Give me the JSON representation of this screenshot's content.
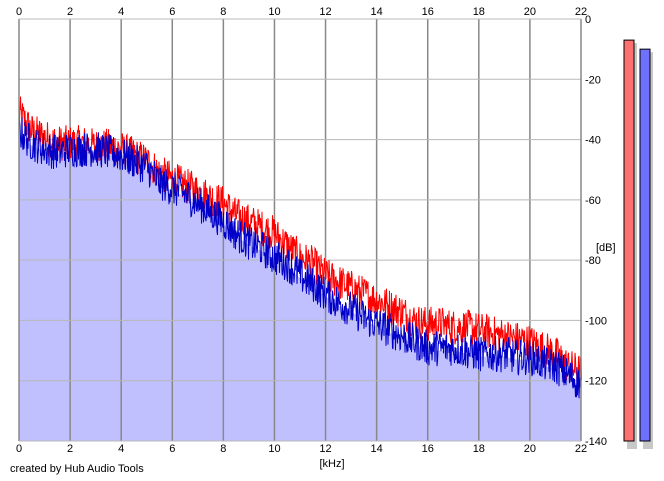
{
  "credit": "created by Hub Audio Tools",
  "chart_data": {
    "type": "area",
    "title": "",
    "xlabel": "[kHz]",
    "ylabel": "[dB]",
    "xlim": [
      0,
      22
    ],
    "ylim": [
      -140,
      0
    ],
    "xticks": [
      0,
      2,
      4,
      6,
      8,
      10,
      12,
      14,
      16,
      18,
      20,
      22
    ],
    "yticks": [
      0,
      -20,
      -40,
      -60,
      -80,
      -100,
      -120,
      -140
    ],
    "grid": true,
    "series": [
      {
        "channel": "left",
        "color": "#ff0000",
        "x": [
          0,
          0.5,
          1,
          1.5,
          2,
          2.5,
          3,
          3.5,
          4,
          4.5,
          5,
          5.5,
          6,
          6.5,
          7,
          7.5,
          8,
          8.5,
          9,
          9.5,
          10,
          10.5,
          11,
          11.5,
          12,
          12.5,
          13,
          13.5,
          14,
          14.5,
          15,
          15.5,
          16,
          16.5,
          17,
          17.5,
          18,
          18.5,
          19,
          19.5,
          20,
          20.5,
          21,
          21.5,
          22
        ],
        "y": [
          -30,
          -36,
          -38,
          -40,
          -40,
          -40,
          -41,
          -41,
          -42,
          -44,
          -46,
          -50,
          -52,
          -54,
          -56,
          -58,
          -60,
          -64,
          -66,
          -68,
          -70,
          -74,
          -78,
          -80,
          -84,
          -86,
          -88,
          -90,
          -92,
          -94,
          -96,
          -99,
          -100,
          -100,
          -101,
          -101,
          -102,
          -103,
          -104,
          -105,
          -106,
          -108,
          -110,
          -114,
          -116
        ]
      },
      {
        "channel": "right",
        "color": "#0000c8",
        "x": [
          0,
          0.5,
          1,
          1.5,
          2,
          2.5,
          3,
          3.5,
          4,
          4.5,
          5,
          5.5,
          6,
          6.5,
          7,
          7.5,
          8,
          8.5,
          9,
          9.5,
          10,
          10.5,
          11,
          11.5,
          12,
          12.5,
          13,
          13.5,
          14,
          14.5,
          15,
          15.5,
          16,
          16.5,
          17,
          17.5,
          18,
          18.5,
          19,
          19.5,
          20,
          20.5,
          21,
          21.5,
          22
        ],
        "y": [
          -36,
          -40,
          -42,
          -43,
          -42,
          -42,
          -42,
          -43,
          -44,
          -46,
          -48,
          -53,
          -55,
          -57,
          -60,
          -63,
          -66,
          -70,
          -73,
          -75,
          -78,
          -80,
          -84,
          -87,
          -90,
          -93,
          -95,
          -98,
          -100,
          -102,
          -104,
          -106,
          -108,
          -108,
          -108,
          -109,
          -110,
          -110,
          -110,
          -111,
          -111,
          -113,
          -114,
          -117,
          -120
        ]
      }
    ],
    "fill_color": "#c0c0ff",
    "meters": [
      {
        "channel": "left",
        "color": "#ff7070",
        "level_db": -7
      },
      {
        "channel": "right",
        "color": "#7070ff",
        "level_db": -10
      }
    ]
  }
}
